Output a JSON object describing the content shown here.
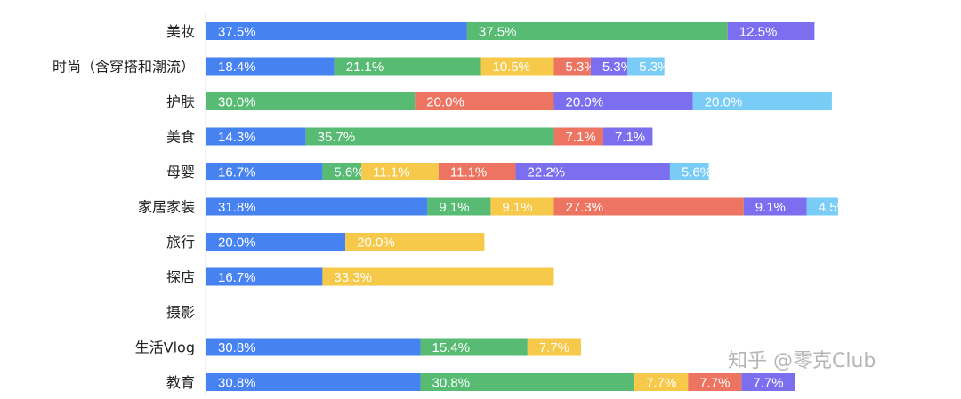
{
  "chart_data": {
    "type": "bar",
    "orientation": "horizontal",
    "stacked": true,
    "title": "",
    "xlabel": "",
    "ylabel": "",
    "grid": false,
    "legend": "none",
    "xlim": [
      0,
      100
    ],
    "categories": [
      "美妆",
      "时尚（含穿搭和潮流）",
      "护肤",
      "美食",
      "母婴",
      "家居家装",
      "旅行",
      "探店",
      "摄影",
      "生活Vlog",
      "教育"
    ],
    "series": [
      {
        "name": "series-1",
        "color": "#4682f0",
        "values": [
          37.5,
          18.4,
          0,
          14.3,
          16.7,
          31.8,
          20.0,
          16.7,
          0,
          30.8,
          30.8
        ]
      },
      {
        "name": "series-2",
        "color": "#57bb73",
        "values": [
          37.5,
          21.1,
          30.0,
          35.7,
          5.6,
          9.1,
          0,
          0,
          0,
          15.4,
          30.8
        ]
      },
      {
        "name": "series-3",
        "color": "#f6c94a",
        "values": [
          0,
          10.5,
          0,
          0,
          11.1,
          9.1,
          20.0,
          33.3,
          0,
          7.7,
          7.7
        ]
      },
      {
        "name": "series-4",
        "color": "#ec7460",
        "values": [
          0,
          5.3,
          20.0,
          7.1,
          11.1,
          27.3,
          0,
          0,
          0,
          0,
          7.7
        ]
      },
      {
        "name": "series-5",
        "color": "#7b6ff0",
        "values": [
          12.5,
          5.3,
          20.0,
          7.1,
          22.2,
          9.1,
          0,
          0,
          0,
          0,
          7.7
        ]
      },
      {
        "name": "series-6",
        "color": "#78ccf5",
        "values": [
          0,
          5.3,
          20.0,
          0,
          5.6,
          4.5,
          0,
          0,
          0,
          0,
          0
        ]
      }
    ]
  },
  "watermark": "知乎 @零克Club"
}
